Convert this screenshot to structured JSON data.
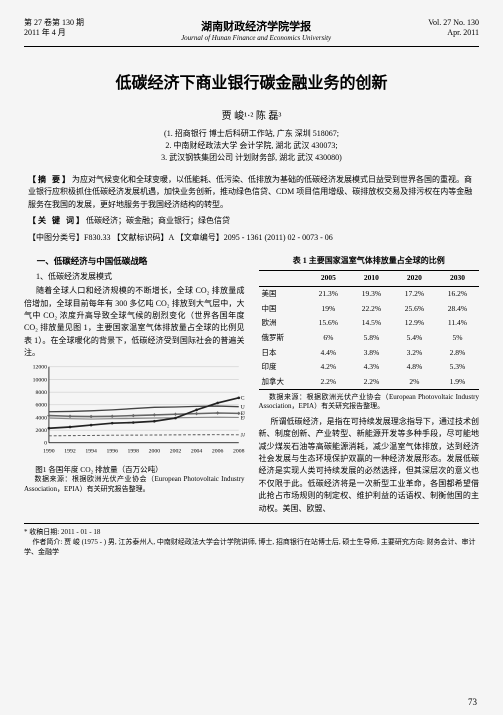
{
  "header": {
    "vol_issue_cn": "第 27 卷第 130 期",
    "date_cn": "2011 年 4 月",
    "journal_cn": "湖南财政经济学院学报",
    "journal_en": "Journal of Hunan Finance and Economics University",
    "vol_issue_en": "Vol. 27 No. 130",
    "date_en": "Apr. 2011"
  },
  "title": "低碳经济下商业银行碳金融业务的创新",
  "authors": "贾 峻¹·²   陈 磊³",
  "affils": [
    "(1. 招商银行 博士后科研工作站, 广东 深圳  518067;",
    "2. 中南财经政法大学 会计学院, 湖北 武汉  430073;",
    "3. 武汉钢铁集团公司 计划财务部, 湖北 武汉  430080)"
  ],
  "abstract": {
    "label": "【摘   要】",
    "text": "为应对气候变化和全球变暖，以低能耗、低污染、低排放为基础的低碳经济发展模式日益受到世界各国的重视。商业银行应积极抓住低碳经济发展机遇，加快业务创新，推动绿色信贷、CDM 项目信用增级、碳排放权交易及排污权在内等金融服务在我国的发展，更好地服务于我国经济结构的转型。"
  },
  "keywords": {
    "label": "【关 键 词】",
    "text": "低碳经济；碳金融；商业银行；绿色信贷"
  },
  "classline": "【中图分类号】F830.33   【文献标识码】A   【文章编号】2095 - 1361 (2011) 02 - 0073 - 06",
  "left": {
    "sec_head": "一、低碳经济与中国低碳战略",
    "subsec": "1、低碳经济发展模式",
    "para1": "随着全球人口和经济规模的不断增长，全球 CO₂ 排放量成倍增加，全球目前每年有 300 多亿吨 CO₂ 排放到大气层中，大气中 CO₂ 浓度升高导致全球气候的剧烈变化（世界各国年度 CO₂ 排放量见图 1，主要国家温室气体排放量占全球的比例见表 1）。在全球暖化的背景下，低碳经济受到国际社会的普遍关注。"
  },
  "chart": {
    "caption": "图1  各国年度 CO₂ 排放量（百万公吨）",
    "note": "数据来源：根据欧洲光伏产业协会（European Photovoltaic Industry Association，EPIA）有关研究报告整理。",
    "x_ticks": [
      "1990",
      "1992",
      "1994",
      "1996",
      "1998",
      "2000",
      "2002",
      "2004",
      "2006",
      "2008"
    ],
    "y_ticks": [
      0,
      2000,
      4000,
      6000,
      8000,
      10000,
      12000
    ],
    "ylim": [
      0,
      12000
    ],
    "grid_color": "#b5b5b5",
    "background_color": "#f5f5f5",
    "series": [
      {
        "label": "EU",
        "color": "#888",
        "style": "solid",
        "width": 1.2,
        "values": [
          3900,
          3800,
          3750,
          3800,
          3850,
          3900,
          3950,
          4000,
          4050,
          4000
        ]
      },
      {
        "label": "EUROPE",
        "color": "#666",
        "style": "solid",
        "width": 1.6,
        "marker": "diamond",
        "values": [
          4300,
          4200,
          4150,
          4200,
          4300,
          4400,
          4500,
          4600,
          4700,
          4650
        ]
      },
      {
        "label": "US",
        "color": "#444",
        "style": "solid",
        "width": 1.4,
        "values": [
          4900,
          4950,
          5050,
          5200,
          5400,
          5600,
          5650,
          5750,
          5800,
          5700
        ]
      },
      {
        "label": "CHINA",
        "color": "#222",
        "style": "solid",
        "width": 1.8,
        "marker": "circle",
        "values": [
          2300,
          2500,
          2800,
          3100,
          3200,
          3400,
          3900,
          5200,
          6300,
          7100
        ]
      },
      {
        "label": "JAPAN",
        "color": "#555",
        "style": "dashed",
        "width": 1.0,
        "values": [
          1100,
          1130,
          1160,
          1200,
          1210,
          1230,
          1250,
          1270,
          1280,
          1260
        ]
      }
    ],
    "label_fontsize": 6
  },
  "table": {
    "caption": "表 1  主要国家温室气体排放量占全球的比例",
    "columns": [
      "",
      "2005",
      "2010",
      "2020",
      "2030"
    ],
    "rows": [
      [
        "美国",
        "21.3%",
        "19.3%",
        "17.2%",
        "16.2%"
      ],
      [
        "中国",
        "19%",
        "22.2%",
        "25.6%",
        "28.4%"
      ],
      [
        "欧洲",
        "15.6%",
        "14.5%",
        "12.9%",
        "11.4%"
      ],
      [
        "俄罗斯",
        "6%",
        "5.8%",
        "5.4%",
        "5%"
      ],
      [
        "日本",
        "4.4%",
        "3.8%",
        "3.2%",
        "2.8%"
      ],
      [
        "印度",
        "4.2%",
        "4.3%",
        "4.8%",
        "5.3%"
      ],
      [
        "加拿大",
        "2.2%",
        "2.2%",
        "2%",
        "1.9%"
      ]
    ],
    "note": "数据来源：根据欧洲光伏产业协会（European Photovoltaic Industry Association，EPIA）有关研究报告整理。"
  },
  "right_para": "所谓低碳经济，是指在可持续发展理念指导下，通过技术创新、制度创新、产业转型、新能源开发等多种手段，尽可能地减少煤炭石油等高碳能源消耗，减少温室气体排放，达到经济社会发展与生态环境保护双赢的一种经济发展形态。发展低碳经济是实现人类可持续发展的必然选择，但其深层次的意义也不仅限于此。低碳经济将是一次新型工业革命，各国都希望借此抢占市场规则的制定权、维护利益的话语权、制衡他国的主动权。美国、欧盟、",
  "footer": {
    "recv": "* 收稿日期: 2011 - 01 - 18",
    "bio": "作者简介: 贾  峻 (1975 -   ) 男, 江苏泰州人, 中南财经政法大学会计学院讲师, 博士, 招商银行在站博士后, 硕士生导师, 主要研究方向: 财务会计、审计学、金融学"
  },
  "page_number": "73"
}
